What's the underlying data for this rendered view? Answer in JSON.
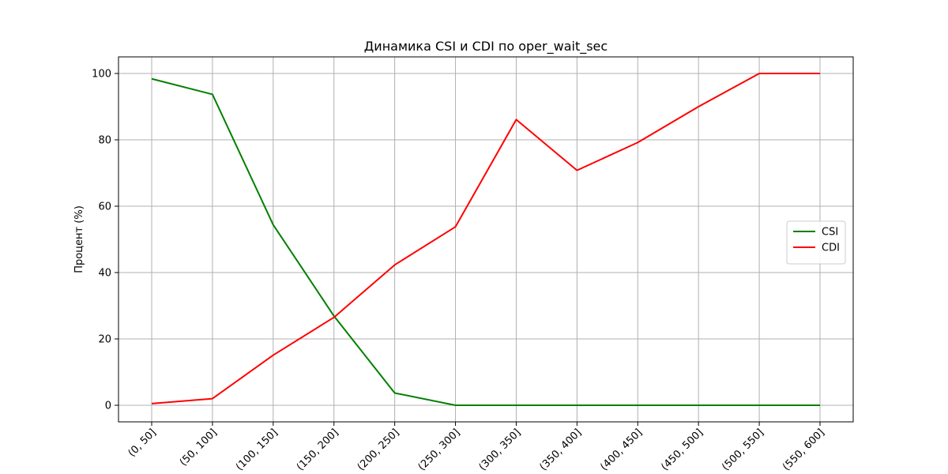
{
  "chart_data": {
    "type": "line",
    "title": "Динамика CSI и CDI по oper_wait_sec",
    "xlabel": "",
    "ylabel": "Процент (%)",
    "categories": [
      "(0, 50]",
      "(50, 100]",
      "(100, 150]",
      "(150, 200]",
      "(200, 250]",
      "(250, 300]",
      "(300, 350]",
      "(350, 400]",
      "(400, 450]",
      "(450, 500]",
      "(500, 550]",
      "(550, 600]"
    ],
    "yticks": [
      0,
      20,
      40,
      60,
      80,
      100
    ],
    "ylim": [
      -5,
      105
    ],
    "grid": true,
    "legend_position": "center-right",
    "series": [
      {
        "name": "CSI",
        "color": "#008000",
        "values": [
          98.4,
          93.7,
          54.4,
          26.9,
          3.7,
          0,
          0,
          0,
          0,
          0,
          0,
          0
        ]
      },
      {
        "name": "CDI",
        "color": "#ff0000",
        "values": [
          0.5,
          2.0,
          15.1,
          26.5,
          42.3,
          53.8,
          86.1,
          70.8,
          79.2,
          90.0,
          100,
          100
        ]
      }
    ]
  }
}
